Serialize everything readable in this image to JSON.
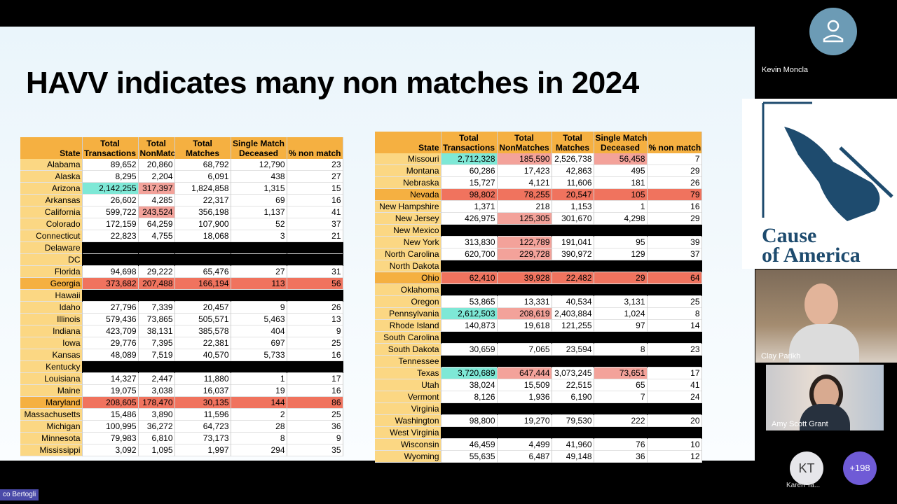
{
  "slide": {
    "title": "HAVV indicates many non matches in 2024"
  },
  "table_headers": {
    "state": "State",
    "total_transactions": [
      "Total",
      "Transactions"
    ],
    "total_nonmatches": [
      "Total",
      "NonMatches"
    ],
    "total_matches": [
      "Total",
      "Matches"
    ],
    "single_match_deceased": [
      "Single Match",
      "Deceased"
    ],
    "pct_non_match": "% non match"
  },
  "left_table": [
    {
      "state": "Alabama",
      "tt": "89,652",
      "tn": "20,860",
      "tm": "68,792",
      "sd": "12,790",
      "pct": "23"
    },
    {
      "state": "Alaska",
      "tt": "8,295",
      "tn": "2,204",
      "tm": "6,091",
      "sd": "438",
      "pct": "27"
    },
    {
      "state": "Arizona",
      "tt": "2,142,255",
      "tn": "317,397",
      "tm": "1,824,858",
      "sd": "1,315",
      "pct": "15",
      "hl": {
        "tt": "cyan",
        "tn": "pink"
      }
    },
    {
      "state": "Arkansas",
      "tt": "26,602",
      "tn": "4,285",
      "tm": "22,317",
      "sd": "69",
      "pct": "16"
    },
    {
      "state": "California",
      "tt": "599,722",
      "tn": "243,524",
      "tm": "356,198",
      "sd": "1,137",
      "pct": "41",
      "hl": {
        "tn": "pink"
      }
    },
    {
      "state": "Colorado",
      "tt": "172,159",
      "tn": "64,259",
      "tm": "107,900",
      "sd": "52",
      "pct": "37"
    },
    {
      "state": "Connecticut",
      "tt": "22,823",
      "tn": "4,755",
      "tm": "18,068",
      "sd": "3",
      "pct": "21"
    },
    {
      "state": "Delaware",
      "black": true
    },
    {
      "state": "DC",
      "black": true
    },
    {
      "state": "Florida",
      "tt": "94,698",
      "tn": "29,222",
      "tm": "65,476",
      "sd": "27",
      "pct": "31"
    },
    {
      "state": "Georgia",
      "tt": "373,682",
      "tn": "207,488",
      "tm": "166,194",
      "sd": "113",
      "pct": "56",
      "red": true
    },
    {
      "state": "Hawaii",
      "black": true
    },
    {
      "state": "Idaho",
      "tt": "27,796",
      "tn": "7,339",
      "tm": "20,457",
      "sd": "9",
      "pct": "26"
    },
    {
      "state": "Illinois",
      "tt": "579,436",
      "tn": "73,865",
      "tm": "505,571",
      "sd": "5,463",
      "pct": "13"
    },
    {
      "state": "Indiana",
      "tt": "423,709",
      "tn": "38,131",
      "tm": "385,578",
      "sd": "404",
      "pct": "9"
    },
    {
      "state": "Iowa",
      "tt": "29,776",
      "tn": "7,395",
      "tm": "22,381",
      "sd": "697",
      "pct": "25"
    },
    {
      "state": "Kansas",
      "tt": "48,089",
      "tn": "7,519",
      "tm": "40,570",
      "sd": "5,733",
      "pct": "16"
    },
    {
      "state": "Kentucky",
      "black": true
    },
    {
      "state": "Louisiana",
      "tt": "14,327",
      "tn": "2,447",
      "tm": "11,880",
      "sd": "1",
      "pct": "17"
    },
    {
      "state": "Maine",
      "tt": "19,075",
      "tn": "3,038",
      "tm": "16,037",
      "sd": "19",
      "pct": "16"
    },
    {
      "state": "Maryland",
      "tt": "208,605",
      "tn": "178,470",
      "tm": "30,135",
      "sd": "144",
      "pct": "86",
      "red": true
    },
    {
      "state": "Massachusetts",
      "tt": "15,486",
      "tn": "3,890",
      "tm": "11,596",
      "sd": "2",
      "pct": "25"
    },
    {
      "state": "Michigan",
      "tt": "100,995",
      "tn": "36,272",
      "tm": "64,723",
      "sd": "28",
      "pct": "36"
    },
    {
      "state": "Minnesota",
      "tt": "79,983",
      "tn": "6,810",
      "tm": "73,173",
      "sd": "8",
      "pct": "9"
    },
    {
      "state": "Mississippi",
      "tt": "3,092",
      "tn": "1,095",
      "tm": "1,997",
      "sd": "294",
      "pct": "35"
    }
  ],
  "right_table": [
    {
      "state": "Missouri",
      "tt": "2,712,328",
      "tn": "185,590",
      "tm": "2,526,738",
      "sd": "56,458",
      "pct": "7",
      "hl": {
        "tt": "cyan",
        "tn": "pink",
        "sd": "pink"
      }
    },
    {
      "state": "Montana",
      "tt": "60,286",
      "tn": "17,423",
      "tm": "42,863",
      "sd": "495",
      "pct": "29"
    },
    {
      "state": "Nebraska",
      "tt": "15,727",
      "tn": "4,121",
      "tm": "11,606",
      "sd": "181",
      "pct": "26"
    },
    {
      "state": "Nevada",
      "tt": "98,802",
      "tn": "78,255",
      "tm": "20,547",
      "sd": "105",
      "pct": "79",
      "red": true
    },
    {
      "state": "New Hampshire",
      "tt": "1,371",
      "tn": "218",
      "tm": "1,153",
      "sd": "1",
      "pct": "16"
    },
    {
      "state": "New Jersey",
      "tt": "426,975",
      "tn": "125,305",
      "tm": "301,670",
      "sd": "4,298",
      "pct": "29",
      "hl": {
        "tn": "pink"
      }
    },
    {
      "state": "New Mexico",
      "black": true
    },
    {
      "state": "New York",
      "tt": "313,830",
      "tn": "122,789",
      "tm": "191,041",
      "sd": "95",
      "pct": "39",
      "hl": {
        "tn": "pink"
      }
    },
    {
      "state": "North Carolina",
      "tt": "620,700",
      "tn": "229,728",
      "tm": "390,972",
      "sd": "129",
      "pct": "37",
      "hl": {
        "tn": "pink"
      }
    },
    {
      "state": "North Dakota",
      "black": true
    },
    {
      "state": "Ohio",
      "tt": "62,410",
      "tn": "39,928",
      "tm": "22,482",
      "sd": "29",
      "pct": "64",
      "red": true
    },
    {
      "state": "Oklahoma",
      "black": true
    },
    {
      "state": "Oregon",
      "tt": "53,865",
      "tn": "13,331",
      "tm": "40,534",
      "sd": "3,131",
      "pct": "25"
    },
    {
      "state": "Pennsylvania",
      "tt": "2,612,503",
      "tn": "208,619",
      "tm": "2,403,884",
      "sd": "1,024",
      "pct": "8",
      "hl": {
        "tt": "cyan",
        "tn": "pink"
      }
    },
    {
      "state": "Rhode Island",
      "tt": "140,873",
      "tn": "19,618",
      "tm": "121,255",
      "sd": "97",
      "pct": "14"
    },
    {
      "state": "South Carolina",
      "black": true
    },
    {
      "state": "South Dakota",
      "tt": "30,659",
      "tn": "7,065",
      "tm": "23,594",
      "sd": "8",
      "pct": "23"
    },
    {
      "state": "Tennessee",
      "black": true
    },
    {
      "state": "Texas",
      "tt": "3,720,689",
      "tn": "647,444",
      "tm": "3,073,245",
      "sd": "73,651",
      "pct": "17",
      "hl": {
        "tt": "cyan",
        "tn": "pink",
        "sd": "pink"
      }
    },
    {
      "state": "Utah",
      "tt": "38,024",
      "tn": "15,509",
      "tm": "22,515",
      "sd": "65",
      "pct": "41"
    },
    {
      "state": "Vermont",
      "tt": "8,126",
      "tn": "1,936",
      "tm": "6,190",
      "sd": "7",
      "pct": "24"
    },
    {
      "state": "Virginia",
      "black": true
    },
    {
      "state": "Washington",
      "tt": "98,800",
      "tn": "19,270",
      "tm": "79,530",
      "sd": "222",
      "pct": "20"
    },
    {
      "state": "West Virginia",
      "black": true
    },
    {
      "state": "Wisconsin",
      "tt": "46,459",
      "tn": "4,499",
      "tm": "41,960",
      "sd": "76",
      "pct": "10"
    },
    {
      "state": "Wyoming",
      "tt": "55,635",
      "tn": "6,487",
      "tm": "49,148",
      "sd": "36",
      "pct": "12"
    }
  ],
  "participants": {
    "kevin": {
      "name": "Kevin Moncla"
    },
    "logo": {
      "line1": "Cause",
      "line2": "of America"
    },
    "clay": {
      "name": "Clay Parikh"
    },
    "amy": {
      "name": "Amy Scott Grant"
    },
    "karen": {
      "initials": "KT",
      "name": "Karen Ta..."
    },
    "more": {
      "label": "+198"
    },
    "presenter": {
      "name": "co Bertogli"
    }
  }
}
